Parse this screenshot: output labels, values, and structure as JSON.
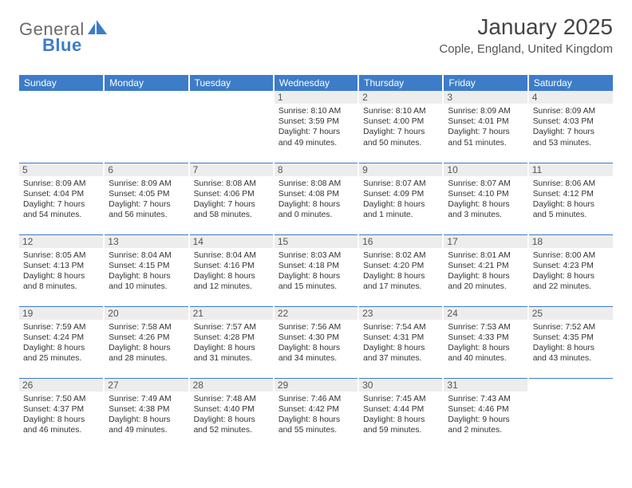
{
  "logo": {
    "general": "General",
    "blue": "Blue"
  },
  "title": "January 2025",
  "location": "Cople, England, United Kingdom",
  "colors": {
    "header_bg": "#3d7cc9",
    "daynum_bg": "#ededed",
    "text": "#333333",
    "title_text": "#444444",
    "logo_gray": "#6b6b6b",
    "logo_blue": "#3d7cc9",
    "page_bg": "#ffffff"
  },
  "typography": {
    "title_fontsize": 28,
    "location_fontsize": 15,
    "weekday_fontsize": 12,
    "daynum_fontsize": 12,
    "body_fontsize": 10.3
  },
  "weekdays": [
    "Sunday",
    "Monday",
    "Tuesday",
    "Wednesday",
    "Thursday",
    "Friday",
    "Saturday"
  ],
  "weeks": [
    [
      null,
      null,
      null,
      {
        "n": "1",
        "sunrise": "8:10 AM",
        "sunset": "3:59 PM",
        "dl": "7 hours and 49 minutes."
      },
      {
        "n": "2",
        "sunrise": "8:10 AM",
        "sunset": "4:00 PM",
        "dl": "7 hours and 50 minutes."
      },
      {
        "n": "3",
        "sunrise": "8:09 AM",
        "sunset": "4:01 PM",
        "dl": "7 hours and 51 minutes."
      },
      {
        "n": "4",
        "sunrise": "8:09 AM",
        "sunset": "4:03 PM",
        "dl": "7 hours and 53 minutes."
      }
    ],
    [
      {
        "n": "5",
        "sunrise": "8:09 AM",
        "sunset": "4:04 PM",
        "dl": "7 hours and 54 minutes."
      },
      {
        "n": "6",
        "sunrise": "8:09 AM",
        "sunset": "4:05 PM",
        "dl": "7 hours and 56 minutes."
      },
      {
        "n": "7",
        "sunrise": "8:08 AM",
        "sunset": "4:06 PM",
        "dl": "7 hours and 58 minutes."
      },
      {
        "n": "8",
        "sunrise": "8:08 AM",
        "sunset": "4:08 PM",
        "dl": "8 hours and 0 minutes."
      },
      {
        "n": "9",
        "sunrise": "8:07 AM",
        "sunset": "4:09 PM",
        "dl": "8 hours and 1 minute."
      },
      {
        "n": "10",
        "sunrise": "8:07 AM",
        "sunset": "4:10 PM",
        "dl": "8 hours and 3 minutes."
      },
      {
        "n": "11",
        "sunrise": "8:06 AM",
        "sunset": "4:12 PM",
        "dl": "8 hours and 5 minutes."
      }
    ],
    [
      {
        "n": "12",
        "sunrise": "8:05 AM",
        "sunset": "4:13 PM",
        "dl": "8 hours and 8 minutes."
      },
      {
        "n": "13",
        "sunrise": "8:04 AM",
        "sunset": "4:15 PM",
        "dl": "8 hours and 10 minutes."
      },
      {
        "n": "14",
        "sunrise": "8:04 AM",
        "sunset": "4:16 PM",
        "dl": "8 hours and 12 minutes."
      },
      {
        "n": "15",
        "sunrise": "8:03 AM",
        "sunset": "4:18 PM",
        "dl": "8 hours and 15 minutes."
      },
      {
        "n": "16",
        "sunrise": "8:02 AM",
        "sunset": "4:20 PM",
        "dl": "8 hours and 17 minutes."
      },
      {
        "n": "17",
        "sunrise": "8:01 AM",
        "sunset": "4:21 PM",
        "dl": "8 hours and 20 minutes."
      },
      {
        "n": "18",
        "sunrise": "8:00 AM",
        "sunset": "4:23 PM",
        "dl": "8 hours and 22 minutes."
      }
    ],
    [
      {
        "n": "19",
        "sunrise": "7:59 AM",
        "sunset": "4:24 PM",
        "dl": "8 hours and 25 minutes."
      },
      {
        "n": "20",
        "sunrise": "7:58 AM",
        "sunset": "4:26 PM",
        "dl": "8 hours and 28 minutes."
      },
      {
        "n": "21",
        "sunrise": "7:57 AM",
        "sunset": "4:28 PM",
        "dl": "8 hours and 31 minutes."
      },
      {
        "n": "22",
        "sunrise": "7:56 AM",
        "sunset": "4:30 PM",
        "dl": "8 hours and 34 minutes."
      },
      {
        "n": "23",
        "sunrise": "7:54 AM",
        "sunset": "4:31 PM",
        "dl": "8 hours and 37 minutes."
      },
      {
        "n": "24",
        "sunrise": "7:53 AM",
        "sunset": "4:33 PM",
        "dl": "8 hours and 40 minutes."
      },
      {
        "n": "25",
        "sunrise": "7:52 AM",
        "sunset": "4:35 PM",
        "dl": "8 hours and 43 minutes."
      }
    ],
    [
      {
        "n": "26",
        "sunrise": "7:50 AM",
        "sunset": "4:37 PM",
        "dl": "8 hours and 46 minutes."
      },
      {
        "n": "27",
        "sunrise": "7:49 AM",
        "sunset": "4:38 PM",
        "dl": "8 hours and 49 minutes."
      },
      {
        "n": "28",
        "sunrise": "7:48 AM",
        "sunset": "4:40 PM",
        "dl": "8 hours and 52 minutes."
      },
      {
        "n": "29",
        "sunrise": "7:46 AM",
        "sunset": "4:42 PM",
        "dl": "8 hours and 55 minutes."
      },
      {
        "n": "30",
        "sunrise": "7:45 AM",
        "sunset": "4:44 PM",
        "dl": "8 hours and 59 minutes."
      },
      {
        "n": "31",
        "sunrise": "7:43 AM",
        "sunset": "4:46 PM",
        "dl": "9 hours and 2 minutes."
      },
      null
    ]
  ],
  "labels": {
    "sunrise": "Sunrise: ",
    "sunset": "Sunset: ",
    "daylight": "Daylight: "
  }
}
